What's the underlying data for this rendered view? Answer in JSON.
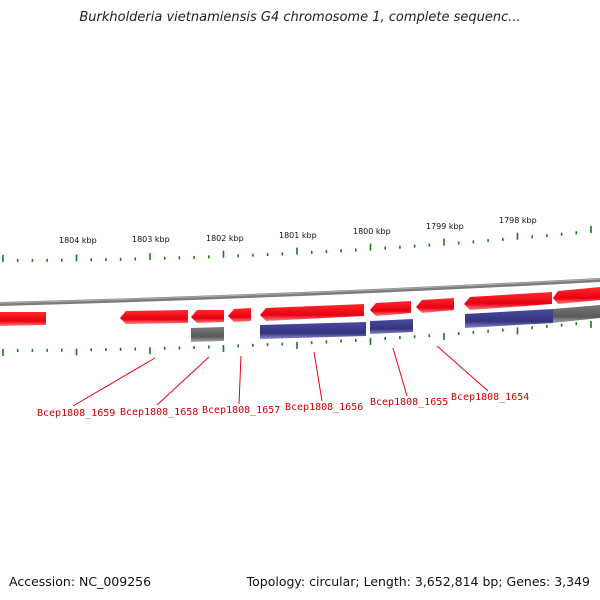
{
  "title": "Burkholderia vietnamiensis G4 chromosome 1, complete sequenc...",
  "footer": {
    "accession": "Accession: NC_009256",
    "summary": "Topology: circular; Length: 3,652,814 bp; Genes: 3,349"
  },
  "colors": {
    "gene": "#e60012",
    "gene_light": "#ff6b6b",
    "cds": "#3a3a8c",
    "cds_light": "#7a7ac0",
    "other": "#666666",
    "other_light": "#9a9a9a",
    "backbone": "#8a8a8a",
    "tick": "#1a7a1a",
    "label": "#cc0000"
  },
  "ruler": [
    {
      "label": "1804 kbp"
    },
    {
      "label": "1803 kbp"
    },
    {
      "label": "1802 kbp"
    },
    {
      "label": "1801 kbp"
    },
    {
      "label": "1800 kbp"
    },
    {
      "label": "1799 kbp"
    },
    {
      "label": "1798 kbp"
    }
  ],
  "gene_labels": [
    {
      "label": "Bcep1808_1659"
    },
    {
      "label": "Bcep1808_1658"
    },
    {
      "label": "Bcep1808_1657"
    },
    {
      "label": "Bcep1808_1656"
    },
    {
      "label": "Bcep1808_1655"
    },
    {
      "label": "Bcep1808_1654"
    }
  ]
}
